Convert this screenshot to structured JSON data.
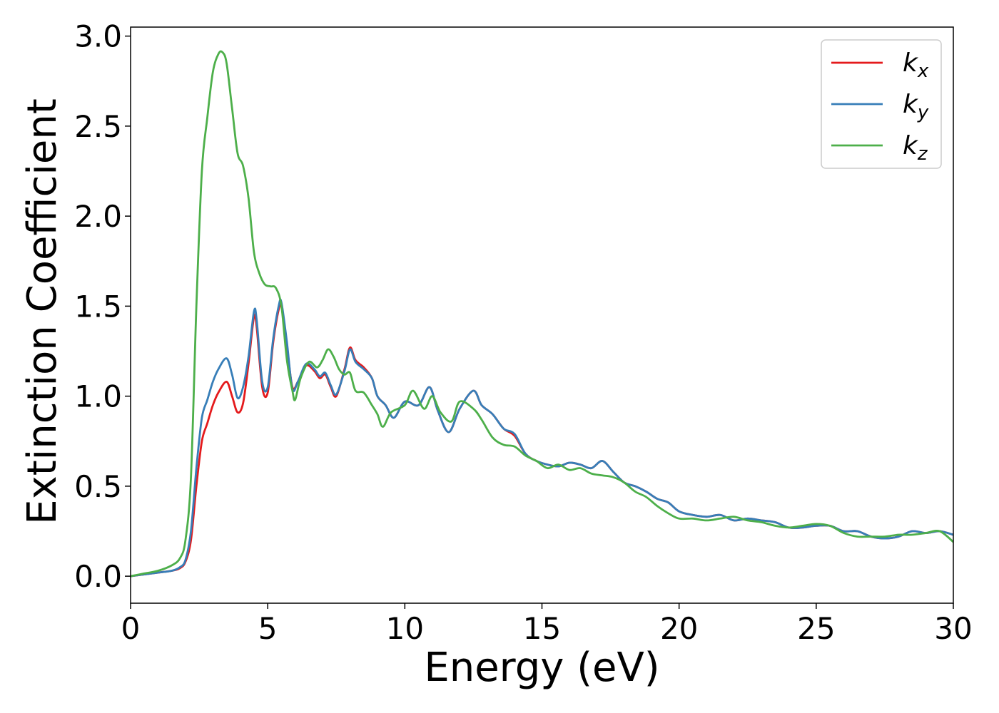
{
  "chart_data": {
    "type": "line",
    "title": "",
    "xlabel": "Energy (eV)",
    "ylabel": "Extinction Coefficient",
    "xlim": [
      0,
      30
    ],
    "ylim": [
      -0.15,
      3.05
    ],
    "xticks": [
      0,
      5,
      10,
      15,
      20,
      25,
      30
    ],
    "yticks": [
      0.0,
      0.5,
      1.0,
      1.5,
      2.0,
      2.5,
      3.0
    ],
    "xtick_labels": [
      "0",
      "5",
      "10",
      "15",
      "20",
      "25",
      "30"
    ],
    "ytick_labels": [
      "0.0",
      "0.5",
      "1.0",
      "1.5",
      "2.0",
      "2.5",
      "3.0"
    ],
    "grid": false,
    "legend_position": "top-right",
    "series": [
      {
        "name": "k_x",
        "label_main": "k",
        "label_sub": "x",
        "color": "#e41a1c",
        "x": [
          0,
          0.5,
          1,
          1.5,
          1.8,
          2.0,
          2.2,
          2.4,
          2.6,
          2.8,
          3.0,
          3.2,
          3.5,
          3.7,
          3.9,
          4.1,
          4.3,
          4.5,
          4.6,
          4.8,
          5.0,
          5.2,
          5.4,
          5.5,
          5.7,
          5.9,
          6.1,
          6.4,
          6.7,
          6.9,
          7.1,
          7.3,
          7.5,
          7.8,
          8.0,
          8.2,
          8.5,
          8.8,
          9.0,
          9.3,
          9.6,
          10.0,
          10.5,
          10.9,
          11.2,
          11.6,
          12.0,
          12.5,
          12.8,
          13.2,
          13.6,
          14.0,
          14.4,
          14.8,
          15.2,
          15.6,
          16.0,
          16.4,
          16.8,
          17.2,
          17.6,
          18.0,
          18.4,
          18.8,
          19.2,
          19.6,
          20.0,
          20.5,
          21.0,
          21.5,
          22.0,
          22.5,
          23.0,
          23.5,
          24.0,
          24.5,
          25.0,
          25.5,
          26.0,
          26.5,
          27.0,
          27.5,
          28.0,
          28.5,
          29.0,
          29.5,
          30.0
        ],
        "values": [
          0.0,
          0.01,
          0.02,
          0.03,
          0.045,
          0.08,
          0.2,
          0.5,
          0.75,
          0.85,
          0.95,
          1.02,
          1.08,
          1.0,
          0.91,
          0.96,
          1.18,
          1.44,
          1.38,
          1.05,
          1.02,
          1.3,
          1.48,
          1.5,
          1.28,
          1.05,
          1.08,
          1.17,
          1.14,
          1.1,
          1.12,
          1.05,
          1.0,
          1.15,
          1.27,
          1.2,
          1.16,
          1.1,
          1.0,
          0.95,
          0.88,
          0.97,
          0.95,
          1.05,
          0.92,
          0.8,
          0.93,
          1.03,
          0.95,
          0.9,
          0.82,
          0.78,
          0.68,
          0.64,
          0.62,
          0.61,
          0.63,
          0.62,
          0.6,
          0.64,
          0.58,
          0.52,
          0.5,
          0.47,
          0.43,
          0.41,
          0.36,
          0.34,
          0.33,
          0.34,
          0.31,
          0.32,
          0.31,
          0.3,
          0.27,
          0.27,
          0.28,
          0.28,
          0.25,
          0.25,
          0.22,
          0.21,
          0.22,
          0.25,
          0.24,
          0.25,
          0.23
        ]
      },
      {
        "name": "k_y",
        "label_main": "k",
        "label_sub": "y",
        "color": "#377eb8",
        "x": [
          0,
          0.5,
          1,
          1.5,
          1.8,
          2.0,
          2.2,
          2.4,
          2.6,
          2.8,
          3.0,
          3.2,
          3.5,
          3.7,
          3.9,
          4.1,
          4.3,
          4.5,
          4.6,
          4.8,
          5.0,
          5.2,
          5.4,
          5.5,
          5.7,
          5.9,
          6.1,
          6.4,
          6.7,
          6.9,
          7.1,
          7.3,
          7.5,
          7.8,
          8.0,
          8.2,
          8.5,
          8.8,
          9.0,
          9.3,
          9.6,
          10.0,
          10.5,
          10.9,
          11.2,
          11.6,
          12.0,
          12.5,
          12.8,
          13.2,
          13.6,
          14.0,
          14.4,
          14.8,
          15.2,
          15.6,
          16.0,
          16.4,
          16.8,
          17.2,
          17.6,
          18.0,
          18.4,
          18.8,
          19.2,
          19.6,
          20.0,
          20.5,
          21.0,
          21.5,
          22.0,
          22.5,
          23.0,
          23.5,
          24.0,
          24.5,
          25.0,
          25.5,
          26.0,
          26.5,
          27.0,
          27.5,
          28.0,
          28.5,
          29.0,
          29.5,
          30.0
        ],
        "values": [
          0.0,
          0.01,
          0.02,
          0.03,
          0.05,
          0.09,
          0.25,
          0.6,
          0.88,
          0.98,
          1.08,
          1.15,
          1.21,
          1.12,
          0.99,
          1.05,
          1.22,
          1.47,
          1.42,
          1.08,
          1.05,
          1.32,
          1.5,
          1.52,
          1.3,
          1.04,
          1.08,
          1.18,
          1.15,
          1.11,
          1.13,
          1.06,
          1.01,
          1.14,
          1.26,
          1.19,
          1.15,
          1.1,
          1.0,
          0.95,
          0.88,
          0.97,
          0.95,
          1.05,
          0.92,
          0.8,
          0.93,
          1.03,
          0.95,
          0.9,
          0.82,
          0.79,
          0.68,
          0.64,
          0.62,
          0.61,
          0.63,
          0.62,
          0.6,
          0.64,
          0.58,
          0.52,
          0.5,
          0.47,
          0.43,
          0.41,
          0.36,
          0.34,
          0.33,
          0.34,
          0.31,
          0.32,
          0.31,
          0.3,
          0.27,
          0.27,
          0.28,
          0.28,
          0.25,
          0.25,
          0.22,
          0.21,
          0.22,
          0.25,
          0.24,
          0.25,
          0.23
        ]
      },
      {
        "name": "k_z",
        "label_main": "k",
        "label_sub": "z",
        "color": "#4daf4a",
        "x": [
          0,
          0.5,
          1,
          1.5,
          1.8,
          2.0,
          2.2,
          2.4,
          2.6,
          2.8,
          3.0,
          3.2,
          3.35,
          3.5,
          3.7,
          3.9,
          4.1,
          4.3,
          4.5,
          4.7,
          4.9,
          5.1,
          5.3,
          5.5,
          5.7,
          5.9,
          6.0,
          6.2,
          6.5,
          6.8,
          7.0,
          7.2,
          7.4,
          7.6,
          7.8,
          8.0,
          8.2,
          8.5,
          8.8,
          9.0,
          9.2,
          9.5,
          10.0,
          10.3,
          10.7,
          11.0,
          11.3,
          11.7,
          12.0,
          12.5,
          12.8,
          13.2,
          13.6,
          14.0,
          14.4,
          14.8,
          15.2,
          15.6,
          16.0,
          16.4,
          16.8,
          17.2,
          17.6,
          18.0,
          18.4,
          18.8,
          19.2,
          19.6,
          20.0,
          20.5,
          21.0,
          21.5,
          22.0,
          22.5,
          23.0,
          23.5,
          24.0,
          24.5,
          25.0,
          25.5,
          26.0,
          26.5,
          27.0,
          27.5,
          28.0,
          28.5,
          29.0,
          29.5,
          30.0
        ],
        "values": [
          0.0,
          0.015,
          0.03,
          0.06,
          0.1,
          0.2,
          0.55,
          1.5,
          2.25,
          2.55,
          2.8,
          2.9,
          2.91,
          2.85,
          2.6,
          2.35,
          2.28,
          2.1,
          1.8,
          1.68,
          1.62,
          1.61,
          1.6,
          1.5,
          1.2,
          1.03,
          0.98,
          1.1,
          1.19,
          1.16,
          1.2,
          1.26,
          1.22,
          1.15,
          1.12,
          1.13,
          1.03,
          1.02,
          0.95,
          0.9,
          0.83,
          0.91,
          0.95,
          1.03,
          0.93,
          1.0,
          0.91,
          0.86,
          0.97,
          0.93,
          0.87,
          0.77,
          0.73,
          0.72,
          0.67,
          0.64,
          0.6,
          0.62,
          0.59,
          0.6,
          0.57,
          0.56,
          0.55,
          0.52,
          0.47,
          0.44,
          0.39,
          0.35,
          0.32,
          0.32,
          0.31,
          0.32,
          0.33,
          0.31,
          0.3,
          0.28,
          0.27,
          0.28,
          0.29,
          0.28,
          0.24,
          0.22,
          0.22,
          0.22,
          0.23,
          0.23,
          0.24,
          0.25,
          0.19
        ]
      }
    ]
  }
}
